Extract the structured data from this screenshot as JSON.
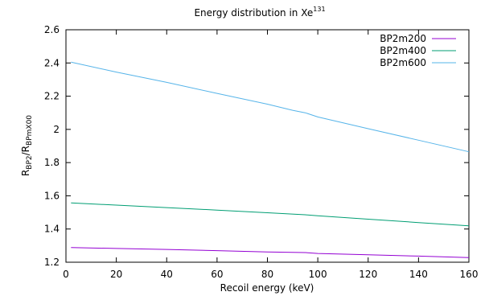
{
  "chart_data": {
    "type": "line",
    "title": {
      "text": "Energy distribution in Xe",
      "sup": "131"
    },
    "xlabel": "Recoil energy (keV)",
    "ylabel": {
      "main": "R",
      "sub1": "BP2",
      "mid": "/R",
      "sub2": "BPmX00"
    },
    "xlim": [
      0,
      160
    ],
    "ylim": [
      1.2,
      2.6
    ],
    "xticks": [
      0,
      20,
      40,
      60,
      80,
      100,
      120,
      140,
      160
    ],
    "yticks": [
      1.2,
      1.4,
      1.6,
      1.8,
      2,
      2.2,
      2.4,
      2.6
    ],
    "grid": false,
    "legend_position": "top-right",
    "series": [
      {
        "name": "BP2m200",
        "color": "#9400d3",
        "x": [
          2,
          20,
          40,
          60,
          80,
          95,
          100,
          120,
          140,
          160
        ],
        "y": [
          1.288,
          1.283,
          1.277,
          1.27,
          1.262,
          1.258,
          1.253,
          1.245,
          1.237,
          1.228
        ]
      },
      {
        "name": "BP2m400",
        "color": "#009e73",
        "x": [
          2,
          20,
          40,
          60,
          80,
          95,
          100,
          120,
          140,
          160
        ],
        "y": [
          1.557,
          1.544,
          1.529,
          1.514,
          1.498,
          1.486,
          1.48,
          1.459,
          1.439,
          1.419
        ]
      },
      {
        "name": "BP2m600",
        "color": "#56b4e9",
        "x": [
          2,
          20,
          40,
          60,
          80,
          90,
          95,
          100,
          120,
          140,
          160
        ],
        "y": [
          2.405,
          2.345,
          2.283,
          2.217,
          2.152,
          2.115,
          2.1,
          2.075,
          2.004,
          1.935,
          1.865
        ]
      }
    ]
  }
}
